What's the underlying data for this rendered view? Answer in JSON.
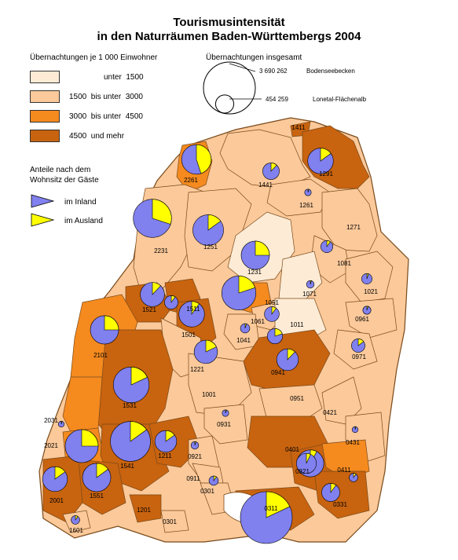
{
  "title_line1": "Tourismusintensität",
  "title_line2": "in den Naturräumen Baden-Württembergs 2004",
  "legend_classes": {
    "heading": "Übernachtungen je 1 000 Einwohner",
    "items": [
      {
        "text": "unter  1500",
        "color": "#fdebd5"
      },
      {
        "text": "1500  bis unter  3000",
        "color": "#fbc99a"
      },
      {
        "text": "3000  bis unter  4500",
        "color": "#f58a1f"
      },
      {
        "text": "4500  und mehr",
        "color": "#c8630f"
      }
    ]
  },
  "legend_size": {
    "heading": "Übernachtungen insgesamt",
    "large_value": "3 690 262",
    "large_label": "Bodenseebecken",
    "small_value": "454 259",
    "small_label": "Lonetal-Flächenalb"
  },
  "legend_share": {
    "heading_line1": "Anteile nach dem",
    "heading_line2": "Wohnsitz der Gäste",
    "inland": {
      "text": "im Inland",
      "color": "#8080ee"
    },
    "ausland": {
      "text": "im Ausland",
      "color": "#ffff00"
    }
  },
  "regions": [
    {
      "code": "1411",
      "class": 3
    },
    {
      "code": "1291",
      "class": 3
    },
    {
      "code": "1441",
      "class": 1
    },
    {
      "code": "2261",
      "class": 2
    },
    {
      "code": "1261",
      "class": 1
    },
    {
      "code": "1271",
      "class": 1
    },
    {
      "code": "2231",
      "class": 1
    },
    {
      "code": "1251",
      "class": 1
    },
    {
      "code": "1081",
      "class": 1
    },
    {
      "code": "1231",
      "class": 0
    },
    {
      "code": "1071",
      "class": 0
    },
    {
      "code": "1021",
      "class": 1
    },
    {
      "code": "1051",
      "class": 2
    },
    {
      "code": "1061",
      "class": 1
    },
    {
      "code": "1011",
      "class": 0
    },
    {
      "code": "0961",
      "class": 1
    },
    {
      "code": "1521",
      "class": 3
    },
    {
      "code": "1511",
      "class": 3
    },
    {
      "code": "1501",
      "class": 3
    },
    {
      "code": "1041",
      "class": 1
    },
    {
      "code": "0971",
      "class": 1
    },
    {
      "code": "2101",
      "class": 2
    },
    {
      "code": "1221",
      "class": 1
    },
    {
      "code": "0941",
      "class": 3
    },
    {
      "code": "1531",
      "class": 3
    },
    {
      "code": "1001",
      "class": 1
    },
    {
      "code": "0951",
      "class": 1
    },
    {
      "code": "0931",
      "class": 1
    },
    {
      "code": "0421",
      "class": 1
    },
    {
      "code": "2031",
      "class": 2
    },
    {
      "code": "2021",
      "class": 2
    },
    {
      "code": "1541",
      "class": 3
    },
    {
      "code": "1211",
      "class": 3
    },
    {
      "code": "0401",
      "class": 3
    },
    {
      "code": "0431",
      "class": 1
    },
    {
      "code": "0921",
      "class": 1
    },
    {
      "code": "0321",
      "class": 3
    },
    {
      "code": "0411",
      "class": 2
    },
    {
      "code": "0911",
      "class": 1
    },
    {
      "code": "2001",
      "class": 3
    },
    {
      "code": "1551",
      "class": 3
    },
    {
      "code": "0301",
      "class": 1
    },
    {
      "code": "0331",
      "class": 3
    },
    {
      "code": "0311",
      "class": 3
    },
    {
      "code": "1201",
      "class": 3
    },
    {
      "code": "0301",
      "class": 1
    },
    {
      "code": "1601",
      "class": 1
    }
  ],
  "pies": [
    {
      "code": "1291",
      "total": 900000,
      "inland": 0.85
    },
    {
      "code": "1441",
      "total": 380000,
      "inland": 0.88
    },
    {
      "code": "2261",
      "total": 1200000,
      "inland": 0.55
    },
    {
      "code": "1261",
      "total": 60000,
      "inland": 0.95
    },
    {
      "code": "2231",
      "total": 2000000,
      "inland": 0.7
    },
    {
      "code": "1251",
      "total": 1300000,
      "inland": 0.85
    },
    {
      "code": "1081",
      "total": 200000,
      "inland": 0.9
    },
    {
      "code": "1231",
      "total": 1100000,
      "inland": 0.75
    },
    {
      "code": "1071",
      "total": 80000,
      "inland": 0.95
    },
    {
      "code": "1021",
      "total": 150000,
      "inland": 0.95
    },
    {
      "code": "1051",
      "total": 1600000,
      "inland": 0.8
    },
    {
      "code": "1521",
      "total": 800000,
      "inland": 0.88
    },
    {
      "code": "1511",
      "total": 250000,
      "inland": 0.9
    },
    {
      "code": "1501",
      "total": 900000,
      "inland": 0.9
    },
    {
      "code": "1061",
      "total": 300000,
      "inland": 0.9
    },
    {
      "code": "0961",
      "total": 90000,
      "inland": 0.95
    },
    {
      "code": "1041",
      "total": 120000,
      "inland": 0.95
    },
    {
      "code": "1011",
      "total": 320000,
      "inland": 0.8
    },
    {
      "code": "2101",
      "total": 1100000,
      "inland": 0.75
    },
    {
      "code": "1221",
      "total": 750000,
      "inland": 0.82
    },
    {
      "code": "0971",
      "total": 250000,
      "inland": 0.85
    },
    {
      "code": "0941",
      "total": 650000,
      "inland": 0.88
    },
    {
      "code": "1531",
      "total": 1750000,
      "inland": 0.82
    },
    {
      "code": "0931",
      "total": 60000,
      "inland": 0.95
    },
    {
      "code": "2031",
      "total": 50000,
      "inland": 0.95
    },
    {
      "code": "2021",
      "total": 1500000,
      "inland": 0.75
    },
    {
      "code": "1541",
      "total": 2200000,
      "inland": 0.85
    },
    {
      "code": "1211",
      "total": 650000,
      "inland": 0.85
    },
    {
      "code": "0401",
      "total": 1000000,
      "inland": 0.92
    },
    {
      "code": "0431",
      "total": 50000,
      "inland": 0.95
    },
    {
      "code": "0921",
      "total": 80000,
      "inland": 0.95
    },
    {
      "code": "0321",
      "total": 550000,
      "inland": 0.93
    },
    {
      "code": "0411",
      "total": 100000,
      "inland": 0.9
    },
    {
      "code": "2001",
      "total": 850000,
      "inland": 0.85
    },
    {
      "code": "1551",
      "total": 1100000,
      "inland": 0.85
    },
    {
      "code": "0911",
      "total": 110000,
      "inland": 0.9
    },
    {
      "code": "0331",
      "total": 450000,
      "inland": 0.9
    },
    {
      "code": "0301",
      "total": 120000,
      "inland": 0.9
    },
    {
      "code": "0311",
      "total": 3690262,
      "inland": 0.82
    },
    {
      "code": "1601",
      "total": 100000,
      "inland": 0.9
    }
  ]
}
